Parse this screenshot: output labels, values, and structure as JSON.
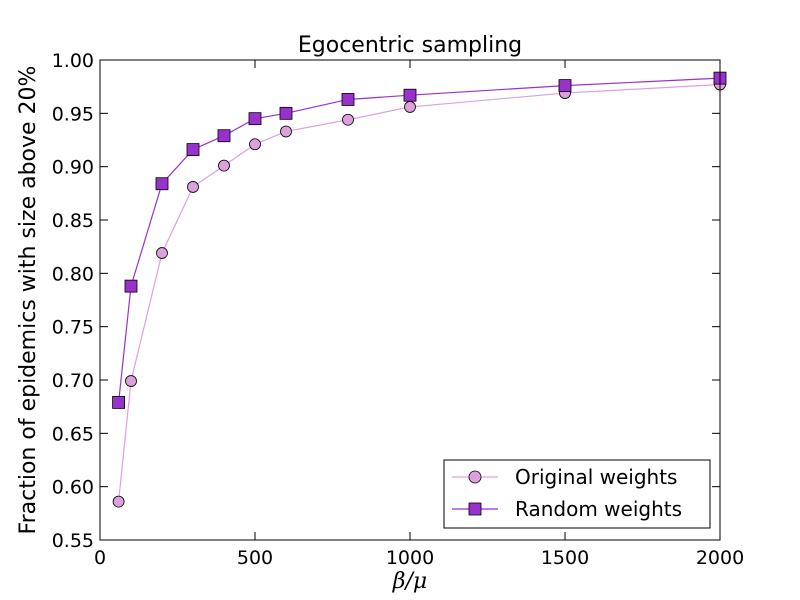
{
  "chart_data": {
    "type": "line",
    "title": "Egocentric sampling",
    "xlabel": "β/μ",
    "ylabel": "Fraction of epidemics with size above 20%",
    "xlim": [
      0,
      2000
    ],
    "ylim": [
      0.55,
      1.0
    ],
    "xticks": [
      "0",
      "500",
      "1000",
      "1500",
      "2000"
    ],
    "yticks": [
      "0.55",
      "0.60",
      "0.65",
      "0.70",
      "0.75",
      "0.80",
      "0.85",
      "0.90",
      "0.95",
      "1.00"
    ],
    "grid": false,
    "legend_position": "lower-right",
    "series": [
      {
        "name": "Original weights",
        "marker": "circle",
        "color": "#dda0dd",
        "line_color": "#dda0dd",
        "x": [
          60,
          100,
          200,
          300,
          400,
          500,
          600,
          800,
          1000,
          1500,
          2000
        ],
        "values": [
          0.586,
          0.699,
          0.819,
          0.881,
          0.901,
          0.921,
          0.933,
          0.944,
          0.956,
          0.969,
          0.977
        ]
      },
      {
        "name": "Random weights",
        "marker": "square",
        "color": "#9932cc",
        "line_color": "#9932cc",
        "x": [
          60,
          100,
          200,
          300,
          400,
          500,
          600,
          800,
          1000,
          1500,
          2000
        ],
        "values": [
          0.679,
          0.788,
          0.884,
          0.916,
          0.929,
          0.945,
          0.95,
          0.963,
          0.967,
          0.976,
          0.983
        ]
      }
    ]
  }
}
